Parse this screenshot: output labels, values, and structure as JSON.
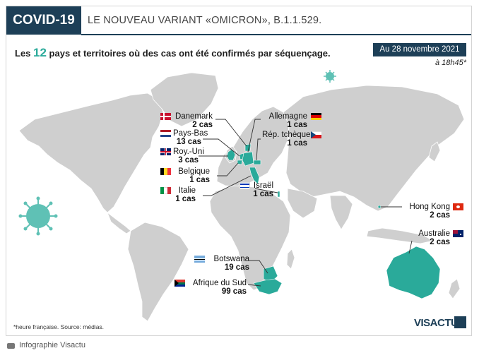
{
  "header": {
    "badge": "COVID-19",
    "headline": "LE NOUVEAU VARIANT «OMICRON», B.1.1.529.",
    "subtitle_pre": "Les ",
    "subtitle_count": "12",
    "subtitle_post": " pays et territoires où des cas ont été confirmés par séquençage.",
    "date": "Au 28 novembre 2021",
    "time": "à 18h45*"
  },
  "colors": {
    "navy": "#1d3f57",
    "teal": "#2aaa9a",
    "land": "#cfcfcf",
    "background": "#ffffff"
  },
  "countries": [
    {
      "name": "Danemark",
      "cases": "2 cas",
      "flag": "denmark-flag"
    },
    {
      "name": "Pays-Bas",
      "cases": "13 cas",
      "flag": "netherlands-flag"
    },
    {
      "name": "Roy.-Uni",
      "cases": "3 cas",
      "flag": "uk-flag"
    },
    {
      "name": "Belgique",
      "cases": "1 cas",
      "flag": "belgium-flag"
    },
    {
      "name": "Italie",
      "cases": "1 cas",
      "flag": "italy-flag"
    },
    {
      "name": "Allemagne",
      "cases": "1 cas",
      "flag": "germany-flag"
    },
    {
      "name": "Rép. tchèque",
      "cases": "1 cas",
      "flag": "czech-flag"
    },
    {
      "name": "Israël",
      "cases": "1 cas",
      "flag": "israel-flag"
    },
    {
      "name": "Hong Kong",
      "cases": "2 cas",
      "flag": "hongkong-flag"
    },
    {
      "name": "Australie",
      "cases": "2 cas",
      "flag": "australia-flag"
    },
    {
      "name": "Botswana",
      "cases": "19 cas",
      "flag": "botswana-flag"
    },
    {
      "name": "Afrique du Sud",
      "cases": "99 cas",
      "flag": "southafrica-flag"
    }
  ],
  "footer": {
    "footnote": "*heure française. Source: médias.",
    "logo": "VISACTU",
    "credit": "Infographie Visactu"
  }
}
